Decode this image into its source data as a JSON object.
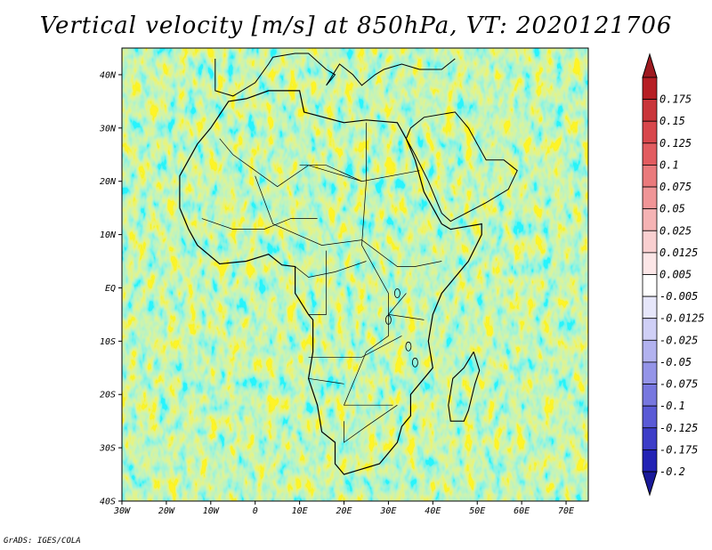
{
  "title": "Vertical velocity [m/s] at 850hPa, VT: 2020121706",
  "credit": "GrADS: IGES/COLA",
  "map": {
    "region": "Africa",
    "variable": "vertical velocity",
    "level": "850hPa",
    "valid_time": "2020121706",
    "lon_range": [
      -30,
      75
    ],
    "lat_range": [
      -40,
      45
    ],
    "lon_ticks": [
      {
        "value": -30,
        "label": "30W"
      },
      {
        "value": -20,
        "label": "20W"
      },
      {
        "value": -10,
        "label": "10W"
      },
      {
        "value": 0,
        "label": "0"
      },
      {
        "value": 10,
        "label": "10E"
      },
      {
        "value": 20,
        "label": "20E"
      },
      {
        "value": 30,
        "label": "30E"
      },
      {
        "value": 40,
        "label": "40E"
      },
      {
        "value": 50,
        "label": "50E"
      },
      {
        "value": 60,
        "label": "60E"
      },
      {
        "value": 70,
        "label": "70E"
      }
    ],
    "lat_ticks": [
      {
        "value": 40,
        "label": "40N"
      },
      {
        "value": 30,
        "label": "30N"
      },
      {
        "value": 20,
        "label": "20N"
      },
      {
        "value": 10,
        "label": "10N"
      },
      {
        "value": 0,
        "label": "EQ"
      },
      {
        "value": -10,
        "label": "10S"
      },
      {
        "value": -20,
        "label": "20S"
      },
      {
        "value": -30,
        "label": "30S"
      },
      {
        "value": -40,
        "label": "40S"
      }
    ]
  },
  "colorbar": {
    "levels": [
      {
        "label": "0.175",
        "color": "#b61e24"
      },
      {
        "label": "0.15",
        "color": "#c9353a"
      },
      {
        "label": "0.125",
        "color": "#d8474c"
      },
      {
        "label": "0.1",
        "color": "#e25c60"
      },
      {
        "label": "0.075",
        "color": "#ea7a7c"
      },
      {
        "label": "0.05",
        "color": "#f09597"
      },
      {
        "label": "0.025",
        "color": "#f5b3b4"
      },
      {
        "label": "0.0125",
        "color": "#f9cfd0"
      },
      {
        "label": "0.005",
        "color": "#fce6e7"
      },
      {
        "label": "-0.005",
        "color": "#ffffff"
      },
      {
        "label": "-0.0125",
        "color": "#e6e6fa"
      },
      {
        "label": "-0.025",
        "color": "#cfcff6"
      },
      {
        "label": "-0.05",
        "color": "#b2b2ef"
      },
      {
        "label": "-0.075",
        "color": "#9494e8"
      },
      {
        "label": "-0.1",
        "color": "#7777df"
      },
      {
        "label": "-0.125",
        "color": "#5a5ad6"
      },
      {
        "label": "-0.175",
        "color": "#3d3dc8"
      },
      {
        "label": "-0.2",
        "color": "#2222b4"
      }
    ],
    "top_arrow_color": "#9e1a20",
    "bottom_arrow_color": "#1a1a9a"
  }
}
